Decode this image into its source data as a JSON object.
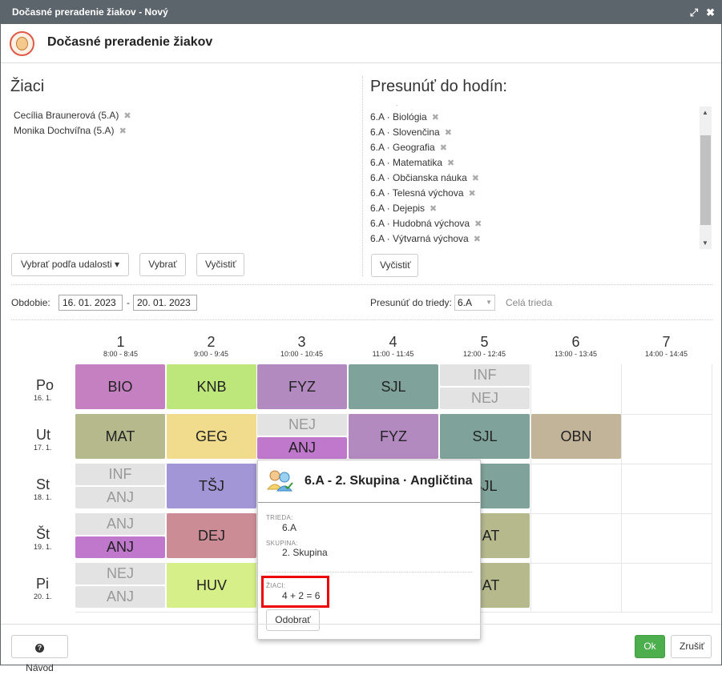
{
  "window": {
    "title": "Dočasné preradenie žiakov - Nový"
  },
  "header": {
    "title": "Dočasné preradenie žiakov"
  },
  "students": {
    "title": "Žiaci",
    "items": [
      "Cecília Braunerová (5.A)",
      "Monika Dochvíľna (5.A)"
    ],
    "btn_by_event": "Vybrať podľa udalosti ▾",
    "btn_select": "Vybrať",
    "btn_clear": "Vyčistiť"
  },
  "move": {
    "title": "Presunúť do hodín:",
    "items": [
      "6.A · Biológia",
      "6.A · Slovenčina",
      "6.A · Geografia",
      "6.A · Matematika",
      "6.A · Občianska náuka",
      "6.A · Telesná výchova",
      "6.A · Dejepis",
      "6.A · Hudobná výchova",
      "6.A · Výtvarná výchova"
    ],
    "btn_clear": "Vyčistiť"
  },
  "period": {
    "label": "Obdobie:",
    "from": "16. 01. 2023",
    "sep": "-",
    "to": "20. 01. 2023"
  },
  "class_move": {
    "label": "Presunúť do triedy:",
    "value": "6.A",
    "whole": "Celá trieda"
  },
  "timetable": {
    "periods": [
      {
        "n": "1",
        "t": "8:00 - 8:45"
      },
      {
        "n": "2",
        "t": "9:00 - 9:45"
      },
      {
        "n": "3",
        "t": "10:00 - 10:45"
      },
      {
        "n": "4",
        "t": "11:00 - 11:45"
      },
      {
        "n": "5",
        "t": "12:00 - 12:45"
      },
      {
        "n": "6",
        "t": "13:00 - 13:45"
      },
      {
        "n": "7",
        "t": "14:00 - 14:45"
      }
    ],
    "days": [
      {
        "d": "Po",
        "dt": "16. 1."
      },
      {
        "d": "Ut",
        "dt": "17. 1."
      },
      {
        "d": "St",
        "dt": "18. 1."
      },
      {
        "d": "Št",
        "dt": "19. 1."
      },
      {
        "d": "Pi",
        "dt": "20. 1."
      }
    ],
    "lessons": {
      "po_1": "BIO",
      "po_2": "KNB",
      "po_3": "FYZ",
      "po_4": "SJL",
      "po_5a": "INF",
      "po_5b": "NEJ",
      "ut_1": "MAT",
      "ut_2": "GEG",
      "ut_3a": "NEJ",
      "ut_3b": "ANJ",
      "ut_4": "FYZ",
      "ut_5": "SJL",
      "ut_6": "OBN",
      "st_1a": "INF",
      "st_1b": "ANJ",
      "st_2": "TŠJ",
      "st_5": "SJL",
      "sv_1a": "ANJ",
      "sv_1b": "ANJ",
      "sv_2": "DEJ",
      "sv_5": "MAT",
      "pi_1a": "NEJ",
      "pi_1b": "ANJ",
      "pi_2": "HUV",
      "pi_5": "MAT"
    },
    "colors": {
      "bio": "#c480c0",
      "knb": "#bde77a",
      "fyz": "#b28ac0",
      "sjl": "#7fa39a",
      "mat": "#b5b98c",
      "geg": "#f0dc8c",
      "anj": "#c078cc",
      "obn": "#c2b498",
      "tsj": "#a396d6",
      "dej": "#cc8c96",
      "huv": "#d7ef88",
      "grey": "#e3e3e3"
    }
  },
  "popup": {
    "title": "6.A - 2. Skupina · Angličtina",
    "class_label": "TRIEDA:",
    "class_value": "6.A",
    "group_label": "SKUPINA:",
    "group_value": "2. Skupina",
    "students_label": "ŽIACI:",
    "students_value": "4 + 2 = 6",
    "remove_btn": "Odobrať"
  },
  "footer": {
    "help": "Návod",
    "ok": "Ok",
    "cancel": "Zrušiť"
  }
}
